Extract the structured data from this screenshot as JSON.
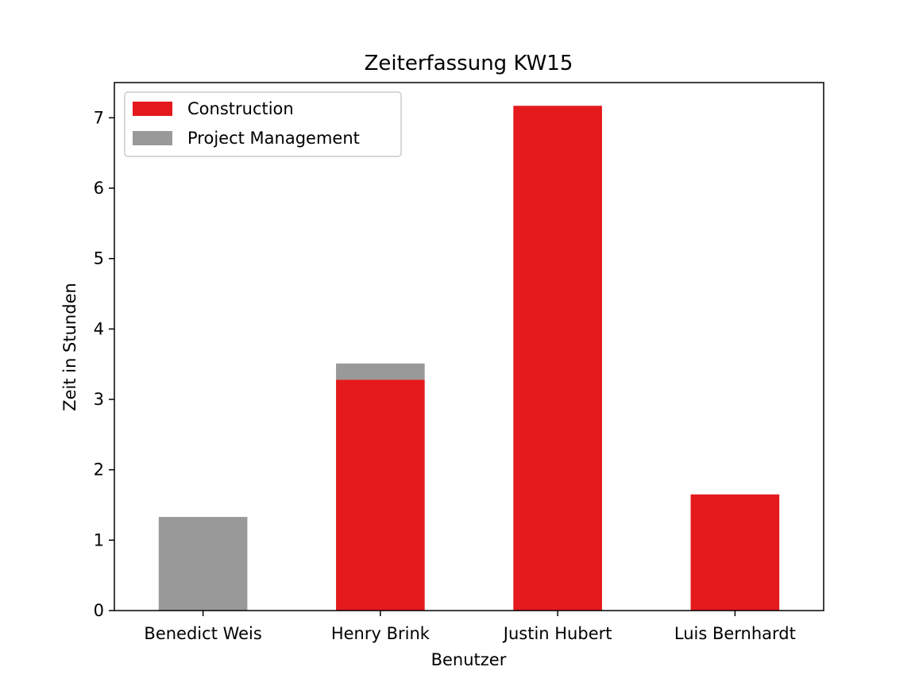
{
  "chart_data": {
    "type": "bar",
    "stacked": true,
    "title": "Zeiterfassung KW15",
    "xlabel": "Benutzer",
    "ylabel": "Zeit in Stunden",
    "categories": [
      "Benedict Weis",
      "Henry Brink",
      "Justin Hubert",
      "Luis Bernhardt"
    ],
    "series": [
      {
        "name": "Construction",
        "color": "#e41a1c",
        "values": [
          0,
          3.28,
          7.17,
          1.65
        ]
      },
      {
        "name": "Project Management",
        "color": "#999999",
        "values": [
          1.33,
          0.23,
          0,
          0
        ]
      }
    ],
    "ylim": [
      0,
      7.5
    ],
    "yticks": [
      0,
      1,
      2,
      3,
      4,
      5,
      6,
      7
    ],
    "grid": false,
    "legend_position": "top-left"
  }
}
